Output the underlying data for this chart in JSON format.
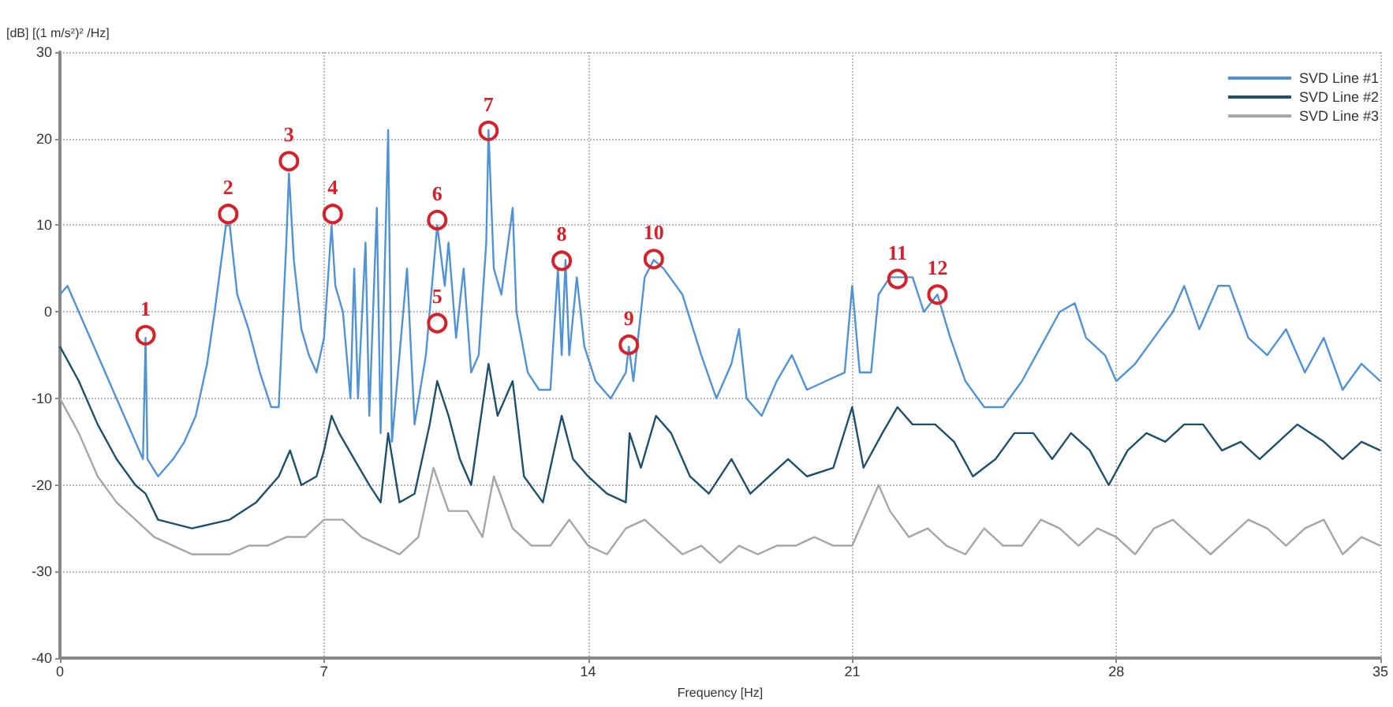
{
  "chart_data": {
    "type": "line",
    "xlabel": "Frequency [Hz]",
    "ylabel": "[dB] [(1 m/s²)² /Hz]",
    "xlim": [
      0,
      35
    ],
    "xticks": [
      0,
      7,
      14,
      21,
      28,
      35
    ],
    "ylim": [
      -40,
      30
    ],
    "yticks": [
      -40,
      -30,
      -20,
      -10,
      0,
      10,
      20,
      30
    ],
    "grid": true,
    "legend": "top right",
    "marker": "none",
    "line_style": "solid",
    "series": [
      {
        "name": "SVD Line #1",
        "color": "#4f93d6",
        "x": [
          0,
          0.2,
          0.5,
          1.0,
          1.5,
          2.0,
          2.2,
          2.27,
          2.32,
          2.6,
          3.0,
          3.3,
          3.6,
          3.9,
          4.1,
          4.4,
          4.5,
          4.7,
          5.0,
          5.3,
          5.6,
          5.8,
          6.0,
          6.07,
          6.2,
          6.4,
          6.6,
          6.8,
          7.0,
          7.2,
          7.3,
          7.5,
          7.7,
          7.8,
          7.9,
          8.1,
          8.2,
          8.4,
          8.5,
          8.7,
          8.8,
          9.2,
          9.4,
          9.7,
          9.9,
          10.0,
          10.2,
          10.3,
          10.5,
          10.7,
          10.9,
          11.1,
          11.3,
          11.36,
          11.5,
          11.7,
          12.0,
          12.1,
          12.4,
          12.7,
          13.0,
          13.2,
          13.3,
          13.4,
          13.5,
          13.7,
          13.9,
          14.2,
          14.6,
          15.0,
          15.08,
          15.2,
          15.5,
          15.74,
          16.0,
          16.5,
          17.0,
          17.4,
          17.8,
          18.0,
          18.2,
          18.6,
          19.0,
          19.4,
          19.8,
          20.3,
          20.8,
          21.0,
          21.2,
          21.5,
          21.7,
          22.0,
          22.2,
          22.6,
          22.9,
          23.26,
          23.6,
          24.0,
          24.5,
          25.0,
          25.5,
          26.0,
          26.5,
          26.9,
          27.2,
          27.7,
          28.0,
          28.5,
          29.0,
          29.5,
          29.8,
          30.2,
          30.7,
          31.0,
          31.5,
          32.0,
          32.5,
          33.0,
          33.5,
          34.0,
          34.5,
          35.0
        ],
        "values": [
          2,
          3,
          0,
          -5,
          -10,
          -15,
          -17,
          -3,
          -17,
          -19,
          -17,
          -15,
          -12,
          -6,
          0,
          10,
          10,
          2,
          -2,
          -7,
          -11,
          -11,
          8,
          16,
          6,
          -2,
          -5,
          -7,
          -3,
          10,
          3,
          0,
          -10,
          5,
          -10,
          8,
          -12,
          12,
          -14,
          21,
          -15,
          5,
          -13,
          -5,
          5,
          10,
          3,
          8,
          -3,
          5,
          -7,
          -5,
          8,
          21,
          5,
          2,
          12,
          0,
          -7,
          -9,
          -9,
          5,
          -5,
          6,
          -5,
          4,
          -4,
          -8,
          -10,
          -7,
          -4,
          -8,
          4,
          6,
          5,
          2,
          -5,
          -10,
          -6,
          -2,
          -10,
          -12,
          -8,
          -5,
          -9,
          -8,
          -7,
          3,
          -7,
          -7,
          2,
          4,
          4,
          4,
          0,
          2,
          -3,
          -8,
          -11,
          -11,
          -8,
          -4,
          0,
          1,
          -3,
          -5,
          -8,
          -6,
          -3,
          0,
          3,
          -2,
          3,
          3,
          -3,
          -5,
          -2,
          -7,
          -3,
          -9,
          -6,
          -8
        ]
      },
      {
        "name": "SVD Line #2",
        "color": "#1d4f6e",
        "x": [
          0,
          0.5,
          1.0,
          1.5,
          2.0,
          2.27,
          2.6,
          3.5,
          4.5,
          5.2,
          5.8,
          6.1,
          6.4,
          6.8,
          7.0,
          7.2,
          7.4,
          7.8,
          8.2,
          8.5,
          8.7,
          9.0,
          9.4,
          9.8,
          10.0,
          10.3,
          10.6,
          10.9,
          11.36,
          11.6,
          12.0,
          12.3,
          12.8,
          13.3,
          13.6,
          14.0,
          14.5,
          15.0,
          15.1,
          15.4,
          15.8,
          16.2,
          16.7,
          17.2,
          17.8,
          18.3,
          18.8,
          19.3,
          19.8,
          20.5,
          21.0,
          21.3,
          21.8,
          22.2,
          22.6,
          23.2,
          23.7,
          24.2,
          24.8,
          25.3,
          25.8,
          26.3,
          26.8,
          27.3,
          27.8,
          28.3,
          28.8,
          29.3,
          29.8,
          30.3,
          30.8,
          31.3,
          31.8,
          32.3,
          32.8,
          33.5,
          34.0,
          34.5,
          35.0
        ],
        "values": [
          -4,
          -8,
          -13,
          -17,
          -20,
          -21,
          -24,
          -25,
          -24,
          -22,
          -19,
          -16,
          -20,
          -19,
          -16,
          -12,
          -14,
          -17,
          -20,
          -22,
          -14,
          -22,
          -21,
          -13,
          -8,
          -12,
          -17,
          -20,
          -6,
          -12,
          -8,
          -19,
          -22,
          -12,
          -17,
          -19,
          -21,
          -22,
          -14,
          -18,
          -12,
          -14,
          -19,
          -21,
          -17,
          -21,
          -19,
          -17,
          -19,
          -18,
          -11,
          -18,
          -14,
          -11,
          -13,
          -13,
          -15,
          -19,
          -17,
          -14,
          -14,
          -17,
          -14,
          -16,
          -20,
          -16,
          -14,
          -15,
          -13,
          -13,
          -16,
          -15,
          -17,
          -15,
          -13,
          -15,
          -17,
          -15,
          -16
        ]
      },
      {
        "name": "SVD Line #3",
        "color": "#a6a6a6",
        "x": [
          0,
          0.5,
          1.0,
          1.5,
          2.0,
          2.5,
          3.0,
          3.5,
          4.0,
          4.5,
          5.0,
          5.5,
          6.0,
          6.5,
          7.0,
          7.5,
          8.0,
          8.5,
          9.0,
          9.5,
          9.9,
          10.3,
          10.8,
          11.2,
          11.5,
          12.0,
          12.5,
          13.0,
          13.5,
          14.0,
          14.5,
          15.0,
          15.5,
          16.0,
          16.5,
          17.0,
          17.5,
          18.0,
          18.5,
          19.0,
          19.5,
          20.0,
          20.5,
          21.0,
          21.3,
          21.7,
          22.0,
          22.5,
          23.0,
          23.5,
          24.0,
          24.5,
          25.0,
          25.5,
          26.0,
          26.5,
          27.0,
          27.5,
          28.0,
          28.5,
          29.0,
          29.5,
          30.0,
          30.5,
          31.0,
          31.5,
          32.0,
          32.5,
          33.0,
          33.5,
          34.0,
          34.5,
          35.0
        ],
        "values": [
          -10,
          -14,
          -19,
          -22,
          -24,
          -26,
          -27,
          -28,
          -28,
          -28,
          -27,
          -27,
          -26,
          -26,
          -24,
          -24,
          -26,
          -27,
          -28,
          -26,
          -18,
          -23,
          -23,
          -26,
          -19,
          -25,
          -27,
          -27,
          -24,
          -27,
          -28,
          -25,
          -24,
          -26,
          -28,
          -27,
          -29,
          -27,
          -28,
          -27,
          -27,
          -26,
          -27,
          -27,
          -24,
          -20,
          -23,
          -26,
          -25,
          -27,
          -28,
          -25,
          -27,
          -27,
          -24,
          -25,
          -27,
          -25,
          -26,
          -28,
          -25,
          -24,
          -26,
          -28,
          -26,
          -24,
          -25,
          -27,
          -25,
          -24,
          -28,
          -26,
          -27
        ]
      }
    ],
    "annotations": [
      {
        "text": "1",
        "x": 2.27,
        "y": -2.7
      },
      {
        "text": "2",
        "x": 4.46,
        "y": 11.3
      },
      {
        "text": "3",
        "x": 6.07,
        "y": 17.4
      },
      {
        "text": "4",
        "x": 7.23,
        "y": 11.3
      },
      {
        "text": "5",
        "x": 10.0,
        "y": -1.3
      },
      {
        "text": "6",
        "x": 10.0,
        "y": 10.6
      },
      {
        "text": "7",
        "x": 11.36,
        "y": 20.9
      },
      {
        "text": "8",
        "x": 13.3,
        "y": 5.9
      },
      {
        "text": "9",
        "x": 15.08,
        "y": -3.8
      },
      {
        "text": "10",
        "x": 15.74,
        "y": 6.1
      },
      {
        "text": "11",
        "x": 22.2,
        "y": 3.8
      },
      {
        "text": "12",
        "x": 23.26,
        "y": 2.0
      }
    ]
  }
}
